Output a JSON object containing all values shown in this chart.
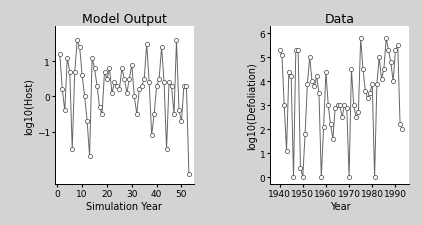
{
  "left_title": "Model Output",
  "right_title": "Data",
  "left_xlabel": "Simulation Year",
  "right_xlabel": "Year",
  "left_ylabel": "log10(Host)",
  "right_ylabel": "log10(Defoliation)",
  "left_x": [
    1,
    2,
    3,
    4,
    5,
    6,
    7,
    8,
    9,
    10,
    11,
    12,
    13,
    14,
    15,
    16,
    17,
    18,
    19,
    20,
    21,
    22,
    23,
    24,
    25,
    26,
    27,
    28,
    29,
    30,
    31,
    32,
    33,
    34,
    35,
    36,
    37,
    38,
    39,
    40,
    41,
    42,
    43,
    44,
    45,
    46,
    47,
    48,
    49,
    50,
    51,
    52,
    53
  ],
  "left_y": [
    1.2,
    0.2,
    -0.4,
    1.1,
    0.7,
    -1.5,
    0.7,
    1.6,
    1.4,
    0.6,
    0.0,
    -0.7,
    -1.7,
    1.1,
    0.8,
    0.3,
    -0.3,
    -0.5,
    0.7,
    0.5,
    0.8,
    0.1,
    0.4,
    0.3,
    0.2,
    0.8,
    0.5,
    0.1,
    0.5,
    0.9,
    0.0,
    -0.5,
    0.2,
    0.3,
    0.5,
    1.5,
    0.4,
    -1.1,
    -0.5,
    0.3,
    0.5,
    1.4,
    0.4,
    -1.5,
    0.4,
    0.3,
    -0.5,
    1.6,
    -0.4,
    -0.7,
    0.3,
    0.3,
    -2.2
  ],
  "right_x": [
    1940,
    1941,
    1942,
    1943,
    1944,
    1945,
    1946,
    1947,
    1948,
    1949,
    1950,
    1951,
    1952,
    1953,
    1954,
    1955,
    1956,
    1957,
    1958,
    1959,
    1960,
    1961,
    1962,
    1963,
    1964,
    1965,
    1966,
    1967,
    1968,
    1969,
    1970,
    1971,
    1972,
    1973,
    1974,
    1975,
    1976,
    1977,
    1978,
    1979,
    1980,
    1981,
    1982,
    1983,
    1984,
    1985,
    1986,
    1987,
    1988,
    1989,
    1990,
    1991,
    1992,
    1993
  ],
  "right_y": [
    5.3,
    5.1,
    3.0,
    1.1,
    4.4,
    4.2,
    0.0,
    5.3,
    5.3,
    0.4,
    0.0,
    1.8,
    3.9,
    5.0,
    4.0,
    3.8,
    4.2,
    3.5,
    0.0,
    2.1,
    4.4,
    3.0,
    2.2,
    1.6,
    2.9,
    3.0,
    3.0,
    2.5,
    3.0,
    2.9,
    0.0,
    4.5,
    3.0,
    2.5,
    2.7,
    5.8,
    4.5,
    3.6,
    3.3,
    3.5,
    3.9,
    0.0,
    3.9,
    5.0,
    4.1,
    4.5,
    5.8,
    5.3,
    4.8,
    4.0,
    5.3,
    5.5,
    2.2,
    2.0
  ],
  "bg_color": "#d3d3d3",
  "plot_bg_color": "#ffffff",
  "line_color": "#666666",
  "marker_facecolor": "white",
  "marker_edgecolor": "#444444",
  "marker_size": 3,
  "left_ylim": [
    -2.5,
    2.0
  ],
  "right_ylim": [
    -0.3,
    6.3
  ],
  "left_xlim": [
    -1,
    55
  ],
  "right_xlim": [
    1936,
    1996
  ],
  "left_yticks": [
    -1,
    0,
    1
  ],
  "right_yticks": [
    0,
    1,
    2,
    3,
    4,
    5,
    6
  ],
  "left_xticks": [
    0,
    10,
    20,
    30,
    40,
    50
  ],
  "right_xticks": [
    1940,
    1950,
    1960,
    1970,
    1980,
    1990
  ],
  "title_fontsize": 9,
  "label_fontsize": 7,
  "tick_fontsize": 6.5
}
